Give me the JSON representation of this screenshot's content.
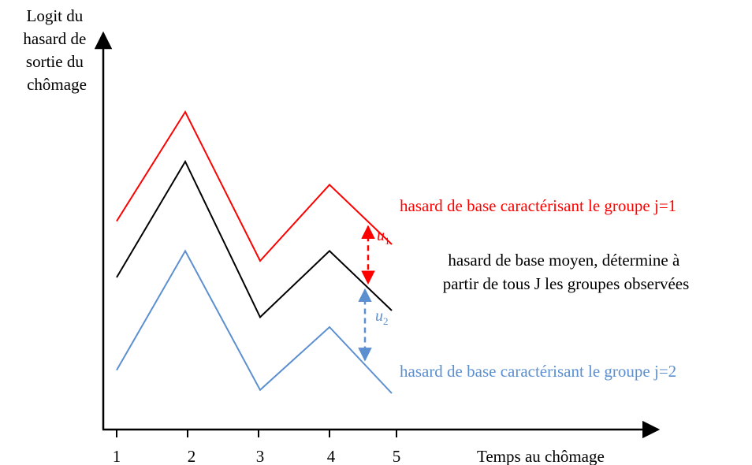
{
  "y_axis_label": [
    "Logit du",
    "hasard de",
    "sortie du",
    "chômage"
  ],
  "x_axis_label": "Temps au chômage",
  "x_ticks": [
    "1",
    "2",
    "3",
    "4",
    "5"
  ],
  "colors": {
    "group1": "#ff0000",
    "mean": "#000000",
    "group2": "#5b8fd0"
  },
  "series": {
    "group1": {
      "label": "hasard de base caractérisant le groupe j=1",
      "shape": [
        0.57,
        0.9,
        0.45,
        0.68,
        0.5
      ]
    },
    "mean": {
      "label_lines": [
        "hasard de base moyen, détermine à",
        "partir de tous J les groupes observées"
      ],
      "shape": [
        0.4,
        0.75,
        0.28,
        0.48,
        0.3
      ]
    },
    "group2": {
      "label": "hasard de base caractérisant le groupe j=2",
      "shape": [
        0.12,
        0.48,
        0.06,
        0.25,
        0.05
      ]
    }
  },
  "offsets": {
    "u1": {
      "var": "u",
      "sub": "1"
    },
    "u2": {
      "var": "u",
      "sub": "2"
    }
  }
}
